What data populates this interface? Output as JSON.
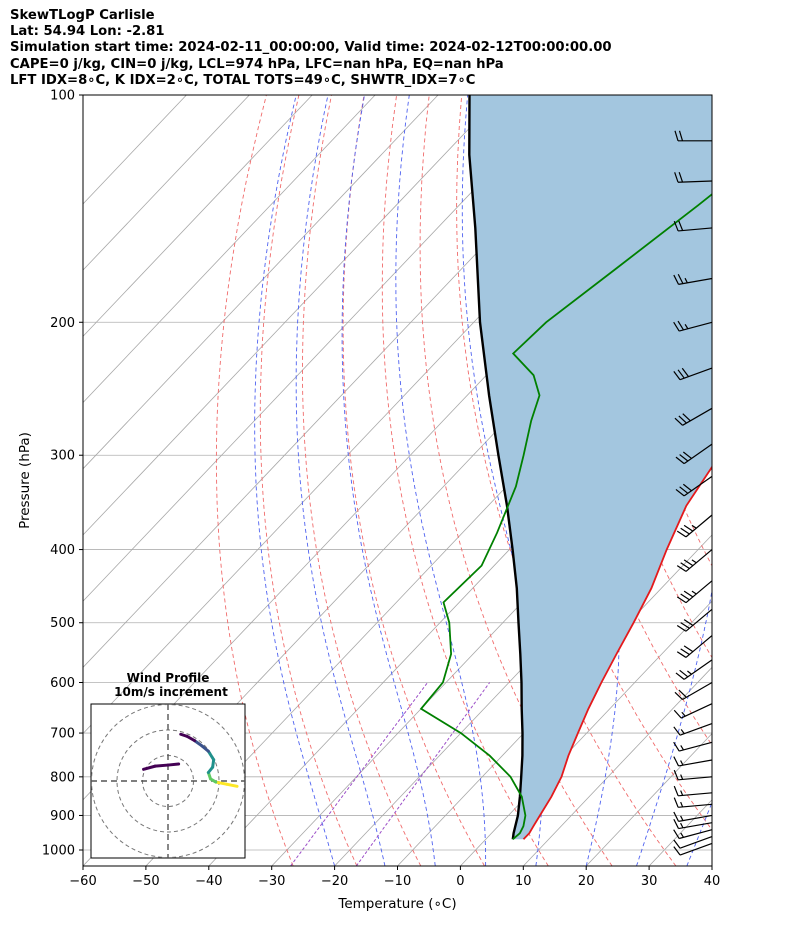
{
  "header": {
    "line1": "SkewTLogP Carlisle",
    "line2": "Lat: 54.94   Lon: -2.81",
    "line3": "Simulation start time: 2024-02-11_00:00:00, Valid time: 2024-02-12T00:00:00.00",
    "line4": "CAPE=0 j/kg, CIN=0 j/kg, LCL=974 hPa, LFC=nan hPa, EQ=nan hPa",
    "line5": "LFT IDX=8∘C, K IDX=2∘C, TOTAL TOTS=49∘C, SHWTR_IDX=7∘C"
  },
  "chart_data": {
    "type": "line",
    "title": "SkewTLogP Carlisle",
    "xlabel": "Temperature (∘C)",
    "ylabel": "Pressure (hPa)",
    "xlim": [
      -60,
      40
    ],
    "ylim": [
      1050,
      100
    ],
    "y_scale": "log",
    "grid": true,
    "x_ticks": [
      "−60",
      "−50",
      "−40",
      "−30",
      "−20",
      "−10",
      "0",
      "10",
      "20",
      "30",
      "40"
    ],
    "x_tick_values": [
      -60,
      -50,
      -40,
      -30,
      -20,
      -10,
      0,
      10,
      20,
      30,
      40
    ],
    "y_ticks": [
      "100",
      "200",
      "300",
      "400",
      "500",
      "600",
      "700",
      "800",
      "900",
      "1000"
    ],
    "y_tick_values": [
      100,
      200,
      300,
      400,
      500,
      600,
      700,
      800,
      900,
      1000
    ],
    "colors": {
      "temperature": "#e41a1c",
      "dewpoint": "#008000",
      "parcel": "#000000",
      "cin_fill": "#a3c6df",
      "dry_adiabat": "#f06b6b",
      "moist_adiabat": "#4f62f0",
      "mixing_ratio": "#9c4fc8",
      "isotherm": "#a8a8a8"
    },
    "series": [
      {
        "points": [
          [
            968,
            6.0
          ],
          [
            950,
            6.0
          ],
          [
            930,
            5.6
          ],
          [
            900,
            5.0
          ],
          [
            850,
            4.0
          ],
          [
            800,
            2.6
          ],
          [
            750,
            0.5
          ],
          [
            700,
            -1.4
          ],
          [
            650,
            -3.4
          ],
          [
            600,
            -5.3
          ],
          [
            550,
            -7.2
          ],
          [
            500,
            -9.2
          ],
          [
            450,
            -11.6
          ],
          [
            400,
            -15.0
          ],
          [
            350,
            -18.5
          ],
          [
            300,
            -20.8
          ],
          [
            270,
            -20.0
          ],
          [
            250,
            -19.2
          ],
          [
            230,
            -18.0
          ],
          [
            215,
            -17.5
          ],
          [
            200,
            -16.5
          ],
          [
            180,
            -15.0
          ],
          [
            160,
            -12.5
          ],
          [
            140,
            -9.5
          ],
          [
            125,
            -8.5
          ],
          [
            110,
            -8.0
          ],
          [
            100,
            -7.5
          ]
        ]
      },
      {
        "points": [
          [
            968,
            4.3
          ],
          [
            950,
            4.5
          ],
          [
            930,
            4.0
          ],
          [
            900,
            2.7
          ],
          [
            850,
            -0.7
          ],
          [
            800,
            -5.5
          ],
          [
            750,
            -12.0
          ],
          [
            700,
            -20.0
          ],
          [
            650,
            -30.0
          ],
          [
            600,
            -30.5
          ],
          [
            550,
            -33.5
          ],
          [
            500,
            -38.5
          ],
          [
            470,
            -42.5
          ],
          [
            420,
            -42.0
          ],
          [
            380,
            -44.5
          ],
          [
            330,
            -48.5
          ],
          [
            300,
            -52.0
          ],
          [
            270,
            -56.0
          ],
          [
            250,
            -58.5
          ],
          [
            235,
            -62.5
          ],
          [
            220,
            -69.0
          ],
          [
            200,
            -68.5
          ],
          [
            170,
            -65.5
          ],
          [
            140,
            -62.0
          ],
          [
            120,
            -59.5
          ],
          [
            100,
            -56.0
          ]
        ]
      },
      {
        "points": [
          [
            968,
            4.3
          ],
          [
            950,
            3.5
          ],
          [
            900,
            1.5
          ],
          [
            850,
            -1.0
          ],
          [
            800,
            -3.8
          ],
          [
            750,
            -6.8
          ],
          [
            700,
            -10.2
          ],
          [
            650,
            -14.0
          ],
          [
            600,
            -18.0
          ],
          [
            550,
            -22.5
          ],
          [
            500,
            -27.5
          ],
          [
            450,
            -33.0
          ],
          [
            400,
            -39.5
          ],
          [
            350,
            -47.0
          ],
          [
            300,
            -56.0
          ],
          [
            250,
            -66.5
          ],
          [
            200,
            -79.0
          ],
          [
            150,
            -94.0
          ],
          [
            120,
            -106.0
          ],
          [
            100,
            -115.0
          ]
        ]
      }
    ],
    "wind_barbs_pressure": [
      980,
      960,
      940,
      920,
      900,
      870,
      840,
      800,
      760,
      720,
      680,
      640,
      600,
      560,
      520,
      480,
      440,
      400,
      360,
      320,
      290,
      260,
      230,
      200,
      175,
      150,
      130,
      115
    ],
    "wind_barb_speeds_kt": [
      10,
      12,
      15,
      15,
      15,
      15,
      15,
      15,
      15,
      15,
      15,
      15,
      20,
      25,
      30,
      30,
      35,
      35,
      35,
      30,
      30,
      30,
      30,
      25,
      25,
      20,
      20,
      20
    ],
    "wind_barb_dirs_deg": [
      250,
      250,
      255,
      260,
      260,
      265,
      265,
      265,
      260,
      255,
      250,
      245,
      240,
      235,
      230,
      230,
      230,
      230,
      230,
      235,
      235,
      240,
      250,
      255,
      260,
      265,
      268,
      270
    ]
  },
  "hodograph": {
    "title_line1": "Wind Profile",
    "title_line2": "10m/s increment",
    "rings": [
      1,
      2,
      3
    ],
    "trace": [
      [
        6.5,
        -0.5
      ],
      [
        5.5,
        -0.3
      ],
      [
        4.5,
        -0.1
      ],
      [
        4.0,
        0.2
      ],
      [
        3.8,
        0.8
      ],
      [
        4.2,
        1.3
      ],
      [
        4.3,
        2.0
      ],
      [
        3.8,
        2.8
      ],
      [
        3.2,
        3.3
      ],
      [
        2.5,
        3.8
      ],
      [
        1.8,
        4.2
      ],
      [
        1.2,
        4.4
      ]
    ],
    "inner_trace": [
      [
        -2.3,
        1.1
      ],
      [
        -1.2,
        1.4
      ],
      [
        0.0,
        1.5
      ],
      [
        1.0,
        1.6
      ]
    ],
    "colors": [
      "#440154",
      "#3b528b",
      "#21918c",
      "#5ec962",
      "#fde725"
    ]
  }
}
